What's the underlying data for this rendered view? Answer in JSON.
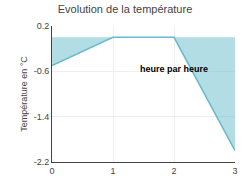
{
  "chart_data": {
    "type": "area",
    "title": "Evolution de la température",
    "ylabel": "Température en °C",
    "x": [
      0,
      1,
      2,
      3
    ],
    "values": [
      -0.5,
      0.0,
      0.0,
      -2.0
    ],
    "color": "#66bbcc",
    "xlim": [
      0,
      3
    ],
    "xticks": [
      0,
      1,
      2,
      3
    ],
    "ylim": [
      -2.2,
      0.2
    ],
    "yticks": [
      0.2,
      -0.6,
      -1.4,
      -2.2
    ],
    "grid": true,
    "annotations": [
      {
        "text": "heure par heure",
        "x": 2.0,
        "y": -0.55
      }
    ]
  }
}
